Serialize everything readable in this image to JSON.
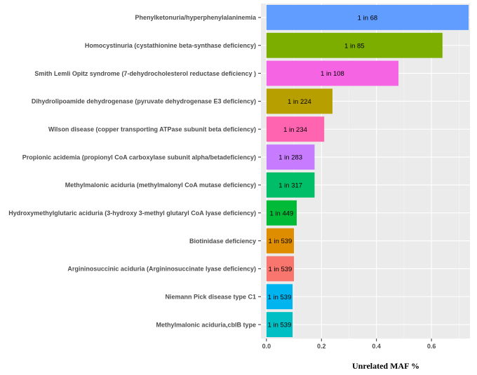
{
  "chart_data": {
    "type": "bar",
    "orientation": "horizontal",
    "xlabel": "Unrelated MAF %",
    "ylabel": "",
    "xlim": [
      -0.02,
      0.74
    ],
    "xticks": [
      "0.0",
      "0.2",
      "0.4",
      "0.6"
    ],
    "xtick_values": [
      0,
      0.2,
      0.4,
      0.6
    ],
    "grid": true,
    "background": "#ebebeb",
    "categories": [
      "Phenylketonuria/hyperphenylalaninemia",
      "Homocystinuria (cystathionine beta-synthase deficiency)",
      "Smith Lemli Opitz syndrome (7-dehydrocholesterol reductase deficiency )",
      "Dihydrolipoamide dehydrogenase (pyruvate dehydrogenase E3 deficiency)",
      "Wilson disease (copper transporting ATPase subunit beta deficiency)",
      "Propionic acidemia (propionyl CoA carboxylase subunit alpha/betadeficiency)",
      "Methylmalonic aciduria (methylmalonyl CoA mutase deficiency)",
      "Hydroxymethylglutaric aciduria (3-hydroxy 3-methyl glutaryl CoA lyase deficiency)",
      "Biotinidase deficiency",
      "Argininosuccinic aciduria (Argininosuccinate lyase deficiency)",
      "Niemann Pick disease type C1",
      "Methylmalonic aciduria,cblB type"
    ],
    "values": [
      0.735,
      0.64,
      0.48,
      0.24,
      0.21,
      0.175,
      0.175,
      0.11,
      0.1,
      0.1,
      0.095,
      0.095
    ],
    "data_labels": [
      "1 in 68",
      "1 in 85",
      "1 in 108",
      "1 in 224",
      "1 in 234",
      "1 in 283",
      "1 in 317",
      "1 in 449",
      "1 in 539",
      "1 in 539",
      "1 in 539",
      "1 in 539"
    ],
    "colors": [
      "#619CFF",
      "#7CAE00",
      "#F564E3",
      "#B79F00",
      "#FF64B0",
      "#C77CFF",
      "#00BE67",
      "#00BA38",
      "#DE8C00",
      "#F8766D",
      "#00B4F0",
      "#00BFC4"
    ]
  }
}
